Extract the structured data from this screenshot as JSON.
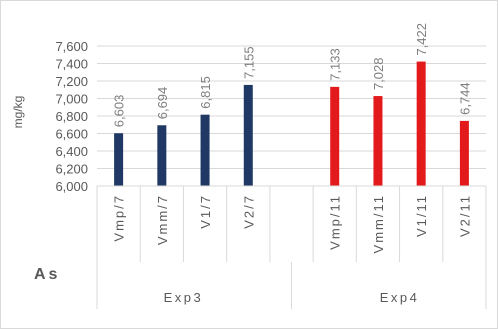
{
  "chart_data": {
    "type": "bar",
    "title": "As",
    "ylabel": "mg/kg",
    "ylim": [
      6000,
      7600
    ],
    "yticks": [
      "6,000",
      "6,200",
      "6,400",
      "6,600",
      "6,800",
      "7,000",
      "7,200",
      "7,400",
      "7,600"
    ],
    "grid": true,
    "categories": [
      "Vmp/7",
      "Vmm/7",
      "V1/7",
      "V2/7",
      "Vmp/11",
      "Vmm/11",
      "V1/11",
      "V2/11"
    ],
    "groups": [
      {
        "name": "Exp3",
        "categories": [
          "Vmp/7",
          "Vmm/7",
          "V1/7",
          "V2/7"
        ]
      },
      {
        "name": "Exp4",
        "categories": [
          "Vmp/11",
          "Vmm/11",
          "V1/11",
          "V2/11"
        ]
      }
    ],
    "values": [
      6603,
      6694,
      6815,
      7155,
      7133,
      7028,
      7422,
      6744
    ],
    "value_labels": [
      "6,603",
      "6,694",
      "6,815",
      "7,155",
      "7,133",
      "7,028",
      "7,422",
      "6,744"
    ],
    "colors": [
      "#1f3864",
      "#1f3864",
      "#1f3864",
      "#1f3864",
      "#e31a1c",
      "#e31a1c",
      "#e31a1c",
      "#e31a1c"
    ]
  }
}
